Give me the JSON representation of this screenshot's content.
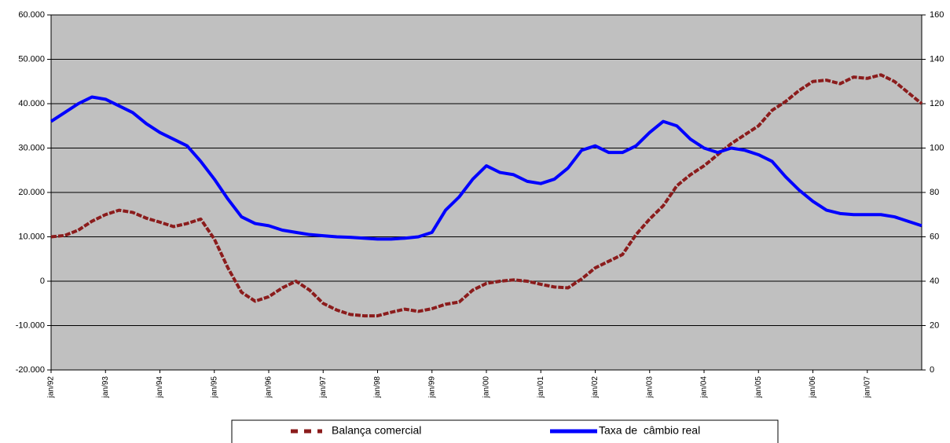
{
  "chart_data": {
    "type": "line",
    "categories": [
      "jan/92",
      null,
      null,
      null,
      "jan/93",
      null,
      null,
      null,
      "jan/94",
      null,
      null,
      null,
      "jan/95",
      null,
      null,
      null,
      "jan/96",
      null,
      null,
      null,
      "jan/97",
      null,
      null,
      null,
      "jan/98",
      null,
      null,
      null,
      "jan/99",
      null,
      null,
      null,
      "jan/00",
      null,
      null,
      null,
      "jan/01",
      null,
      null,
      null,
      "jan/02",
      null,
      null,
      null,
      "jan/03",
      null,
      null,
      null,
      "jan/04",
      null,
      null,
      null,
      "jan/05",
      null,
      null,
      null,
      "jan/06",
      null,
      null,
      null,
      "jan/07",
      null,
      null,
      null,
      null
    ],
    "series": [
      {
        "name": "Balança comercial",
        "color": "#8b1c1c",
        "axis": "y",
        "values": [
          10000,
          10300,
          11500,
          13500,
          15000,
          16000,
          15500,
          14200,
          13300,
          12300,
          13000,
          14000,
          9500,
          3000,
          -2500,
          -4500,
          -3500,
          -1500,
          0,
          -2000,
          -5000,
          -6500,
          -7500,
          -7800,
          -7800,
          -7000,
          -6300,
          -6800,
          -6200,
          -5200,
          -4700,
          -2000,
          -500,
          0,
          300,
          0,
          -700,
          -1300,
          -1500,
          500,
          3000,
          4500,
          6000,
          10500,
          14000,
          17000,
          21500,
          24000,
          26000,
          28500,
          31000,
          33000,
          35000,
          38500,
          40500,
          43000,
          45000,
          45300,
          44500,
          46000,
          45700,
          46500,
          45000,
          42500,
          40000
        ]
      },
      {
        "name": "Taxa de  câmbio real",
        "color": "#0000ff",
        "axis": "y2",
        "values": [
          112,
          116,
          120,
          123,
          122,
          119,
          116,
          111,
          107,
          104,
          101,
          94,
          86,
          77,
          69,
          66,
          65,
          63,
          62,
          61,
          60.5,
          60,
          59.8,
          59.4,
          59,
          59,
          59.4,
          60,
          62,
          72,
          78,
          86,
          92,
          89,
          88,
          85,
          84,
          86,
          91,
          99,
          101,
          98,
          98,
          101,
          107,
          112,
          110,
          104,
          100,
          98,
          100,
          99,
          97,
          94,
          87,
          81,
          76,
          72,
          70.5,
          70,
          70,
          70,
          69,
          67,
          65
        ]
      }
    ],
    "ylim": [
      -20000,
      60000
    ],
    "yticks": [
      {
        "value": -20000,
        "label": "-20.000"
      },
      {
        "value": -10000,
        "label": "-10.000"
      },
      0,
      {
        "value": 10000,
        "label": "10.000"
      },
      {
        "value": 20000,
        "label": "20.000"
      },
      {
        "value": 30000,
        "label": "30.000"
      },
      {
        "value": 40000,
        "label": "40.000"
      },
      {
        "value": 50000,
        "label": "50.000"
      },
      {
        "value": 60000,
        "label": "60.000"
      }
    ],
    "y2lim": [
      0,
      160
    ],
    "y2ticks": [
      0,
      20,
      40,
      60,
      80,
      100,
      120,
      140,
      160
    ],
    "grid": true,
    "legend": "bottom"
  }
}
